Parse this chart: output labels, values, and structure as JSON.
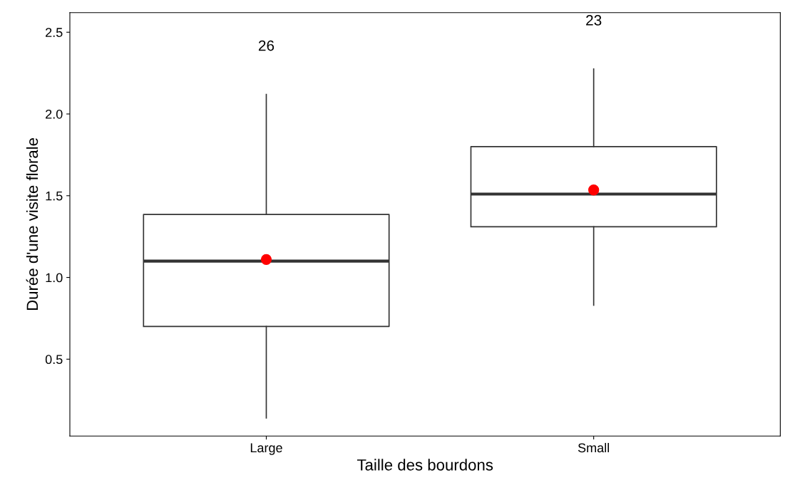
{
  "chart_data": {
    "type": "box",
    "xlabel": "Taille des bourdons",
    "ylabel": "Durée d'une visite florale",
    "categories": [
      "Large",
      "Small"
    ],
    "boxes": [
      {
        "low": 0.14,
        "q1": 0.7,
        "median": 1.1,
        "q3": 1.385,
        "high": 2.12,
        "mean": 1.11
      },
      {
        "low": 0.83,
        "q1": 1.31,
        "median": 1.51,
        "q3": 1.8,
        "high": 2.275,
        "mean": 1.535
      }
    ],
    "ylim": [
      0.03,
      2.62
    ],
    "yticks": [
      0.5,
      {
        "value": 1,
        "label": "1.0"
      },
      1.5,
      {
        "value": 2,
        "label": "2.0"
      },
      2.5
    ],
    "annotations": [
      "26",
      "23"
    ],
    "grid": false,
    "legend": false
  }
}
